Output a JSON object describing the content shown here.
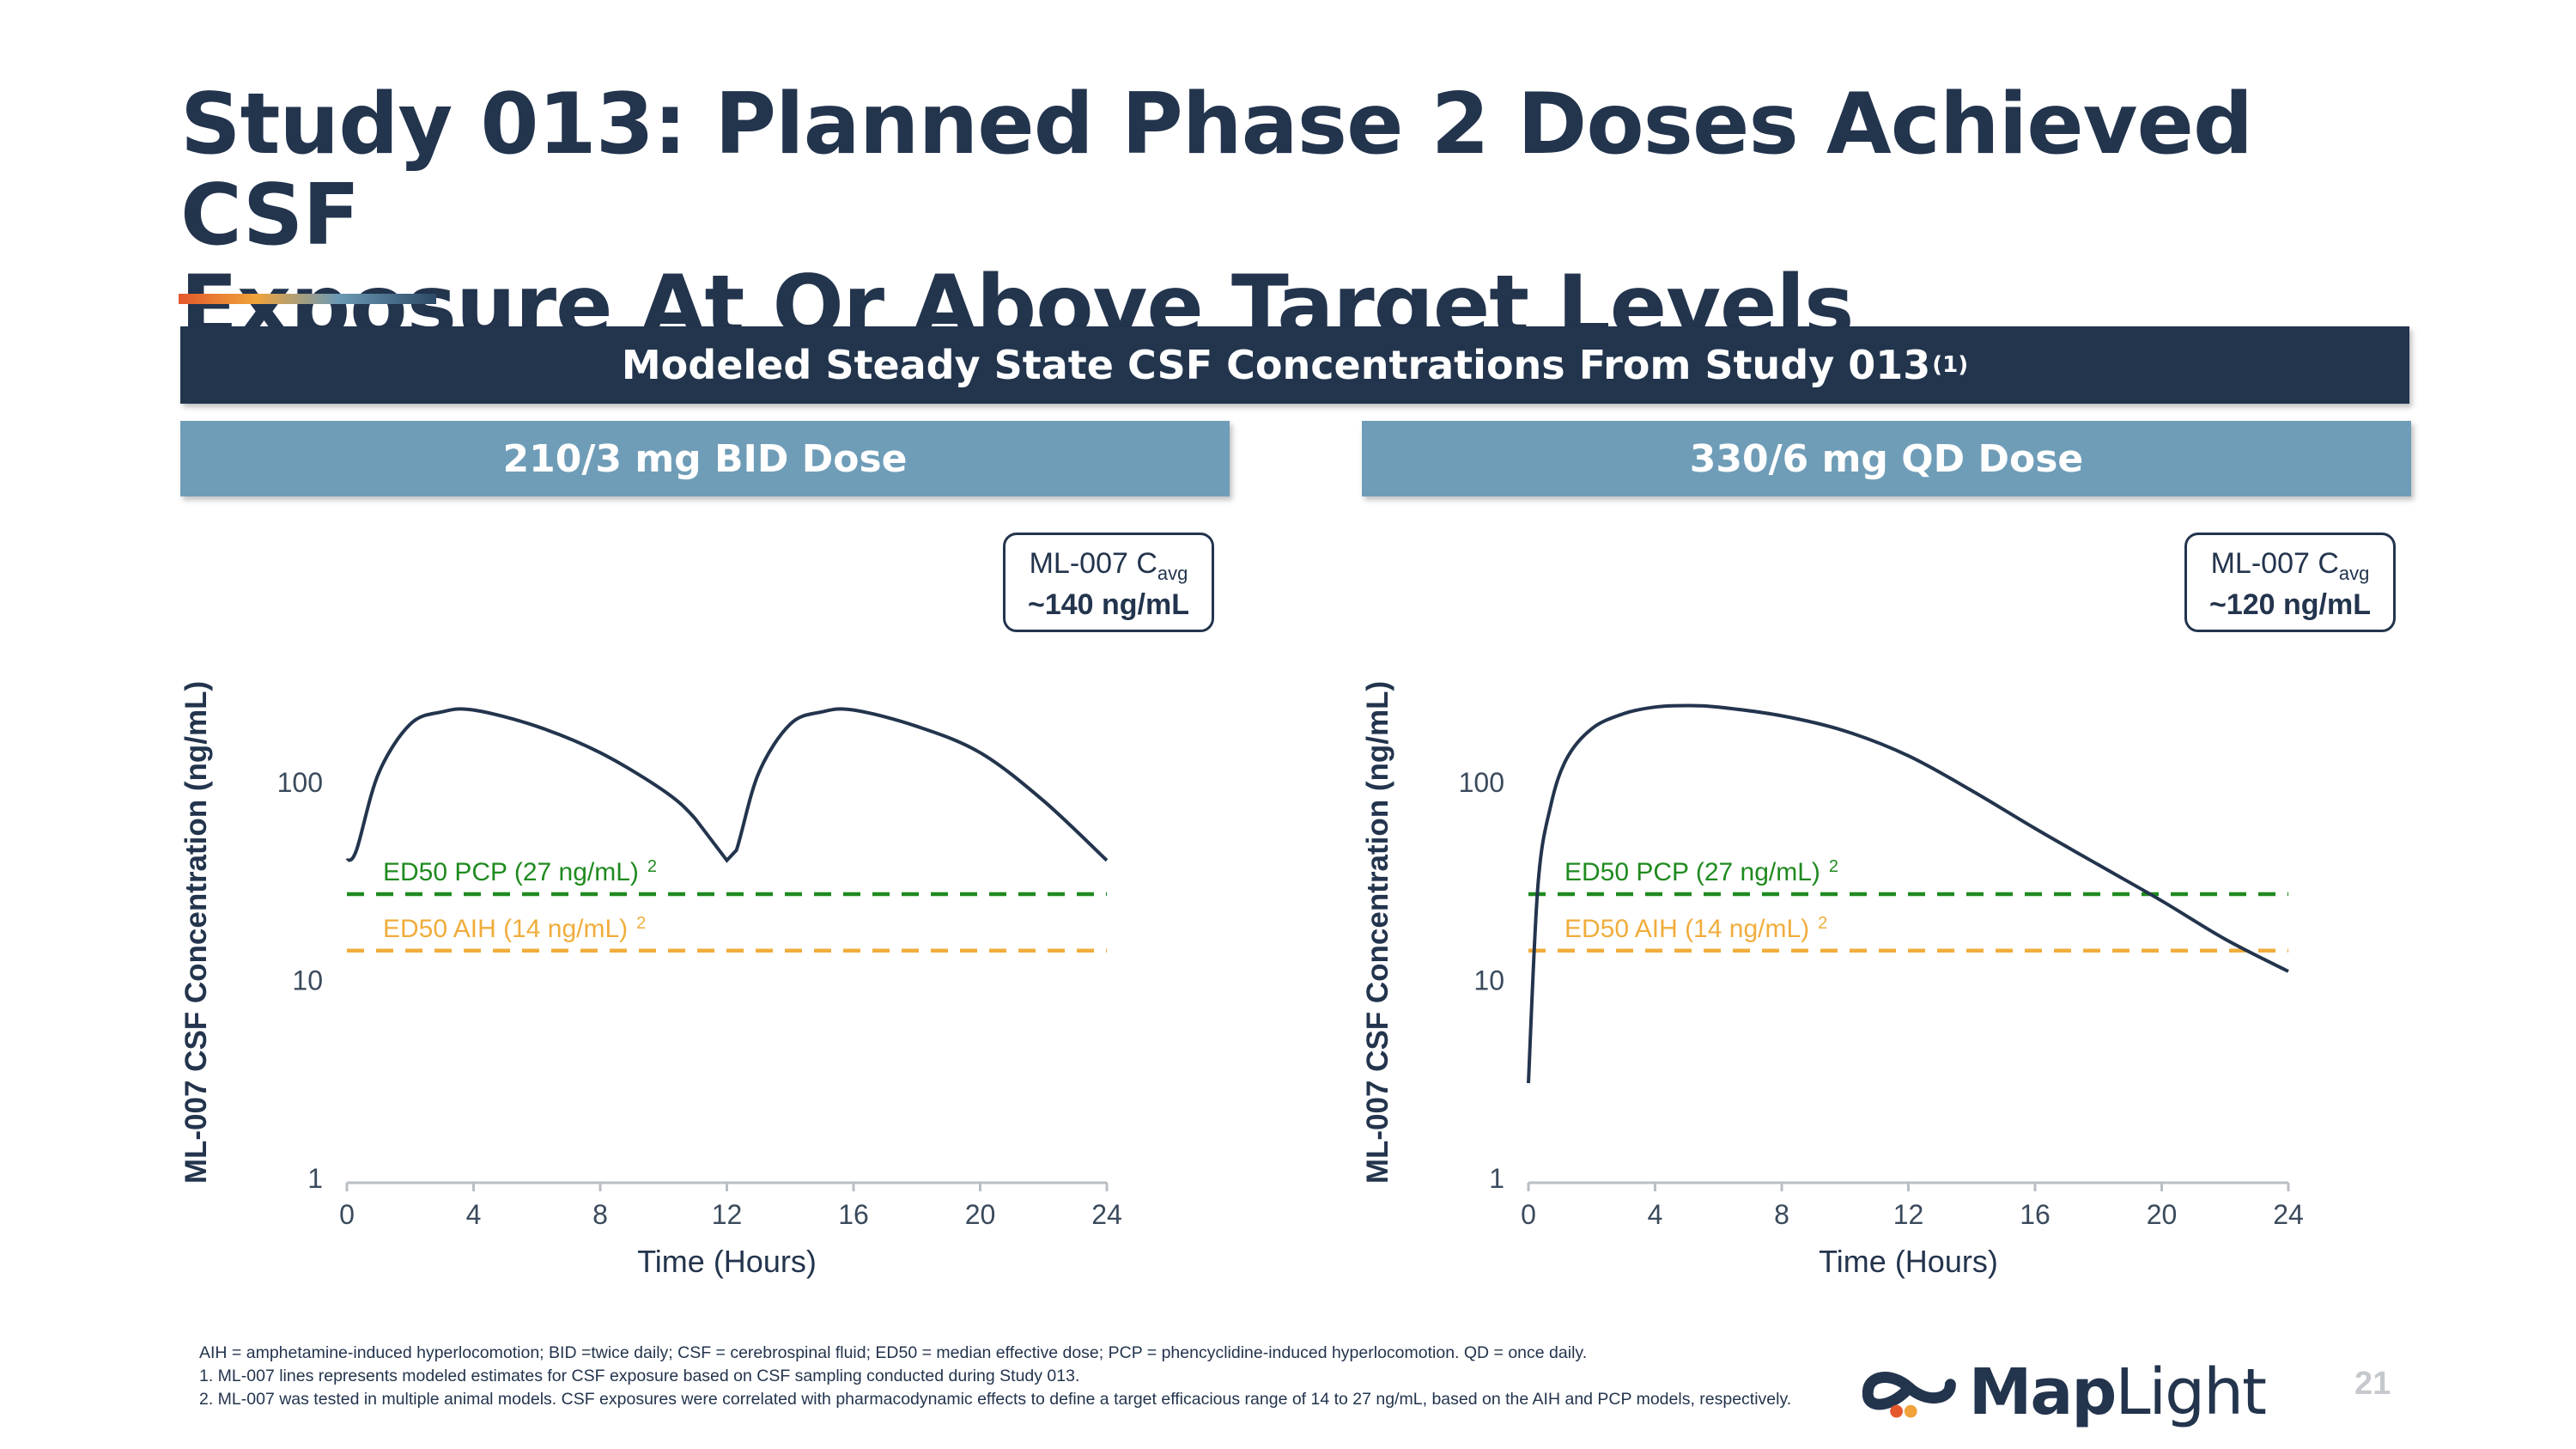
{
  "title": {
    "line1": "Study 013: Planned Phase 2 Doses Achieved CSF",
    "line2": "Exposure At Or Above Target Levels"
  },
  "banner": {
    "text": "Modeled Steady State CSF Concentrations From Study 013",
    "superscript": "(1)"
  },
  "panels": [
    {
      "heading": "210/3 mg BID Dose"
    },
    {
      "heading": "330/6 mg QD Dose"
    }
  ],
  "chart_data": [
    {
      "type": "line",
      "title": "210/3 mg BID Dose",
      "xlabel": "Time (Hours)",
      "ylabel": "ML-007 CSF Concentration (ng/mL)",
      "yscale": "log",
      "ylim": [
        1,
        300
      ],
      "xlim": [
        0,
        24
      ],
      "xticks": [
        "0",
        "4",
        "8",
        "12",
        "16",
        "20",
        "24"
      ],
      "yticks": [
        "1",
        "10",
        "100"
      ],
      "series": [
        {
          "name": "ML-007",
          "x": [
            0,
            0.3,
            1,
            2,
            3,
            4,
            6,
            8,
            10,
            11,
            12,
            12.3,
            13,
            14,
            15,
            16,
            18,
            20,
            22,
            24
          ],
          "y": [
            40,
            45,
            110,
            195,
            225,
            230,
            190,
            140,
            90,
            65,
            40,
            45,
            110,
            195,
            225,
            230,
            190,
            140,
            80,
            40
          ]
        }
      ],
      "reference_lines": [
        {
          "label": "ED50 PCP (27 ng/mL)",
          "superscript": "2",
          "value": 27,
          "color": "#1f8a1f"
        },
        {
          "label": "ED50 AIH (14 ng/mL)",
          "superscript": "2",
          "value": 14,
          "color": "#f0ad3c"
        }
      ],
      "annotation": {
        "line1": "ML-007 C",
        "sub": "avg",
        "line2": "~140 ng/mL"
      }
    },
    {
      "type": "line",
      "title": "330/6 mg QD Dose",
      "xlabel": "Time (Hours)",
      "ylabel": "ML-007 CSF Concentration (ng/mL)",
      "yscale": "log",
      "ylim": [
        1,
        300
      ],
      "xlim": [
        0,
        24
      ],
      "xticks": [
        "0",
        "4",
        "8",
        "12",
        "16",
        "20",
        "24"
      ],
      "yticks": [
        "1",
        "10",
        "100"
      ],
      "series": [
        {
          "name": "ML-007",
          "x": [
            0,
            0.3,
            0.7,
            1.2,
            2,
            3,
            4,
            5,
            6,
            8,
            10,
            12,
            14,
            16,
            18,
            20,
            22,
            24
          ],
          "y": [
            3,
            30,
            75,
            130,
            185,
            220,
            238,
            242,
            238,
            215,
            180,
            135,
            90,
            58,
            38,
            25,
            16,
            11
          ]
        }
      ],
      "reference_lines": [
        {
          "label": "ED50 PCP (27 ng/mL)",
          "superscript": "2",
          "value": 27,
          "color": "#1f8a1f"
        },
        {
          "label": "ED50 AIH (14 ng/mL)",
          "superscript": "2",
          "value": 14,
          "color": "#f0ad3c"
        }
      ],
      "annotation": {
        "line1": "ML-007 C",
        "sub": "avg",
        "line2": "~120 ng/mL"
      }
    }
  ],
  "footnotes": {
    "abbrev": "AIH = amphetamine-induced hyperlocomotion; BID =twice daily; CSF = cerebrospinal fluid; ED50 = median effective dose; PCP = phencyclidine-induced hyperlocomotion. QD = once daily.",
    "note1": "1.  ML-007 lines represents modeled estimates for CSF exposure based on CSF sampling conducted during Study 013.",
    "note2": "2.  ML-007 was tested in multiple animal models. CSF exposures were correlated with pharmacodynamic effects to define a target efficacious range of 14 to 27 ng/mL, based on the AIH and PCP models, respectively."
  },
  "logo": {
    "bold": "Map",
    "light": "Light"
  },
  "page_number": "21",
  "colors": {
    "navy": "#22354d",
    "steel_blue": "#6f9db8",
    "green": "#1f8a1f",
    "orange": "#f0ad3c"
  }
}
